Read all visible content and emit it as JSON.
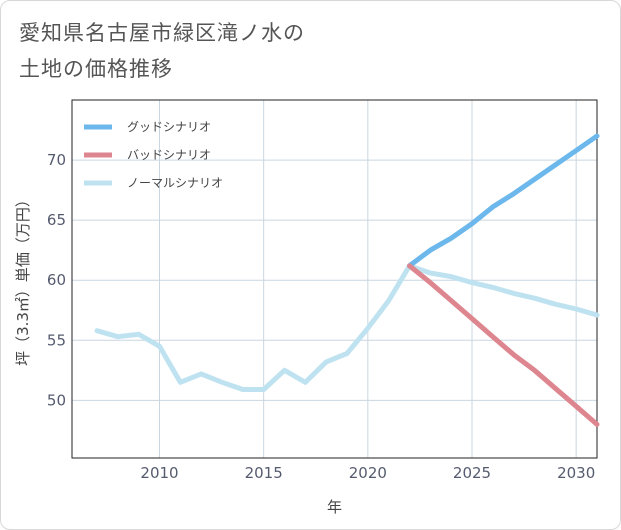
{
  "title_lines": [
    "愛知県名古屋市緑区滝ノ水の",
    "土地の価格推移"
  ],
  "chart_data": {
    "type": "line",
    "title": "愛知県名古屋市緑区滝ノ水の土地の価格推移",
    "xlabel": "年",
    "ylabel": "坪（3.3㎡）単価（万円）",
    "xlim": [
      2005.8,
      2031
    ],
    "ylim": [
      45.2,
      75
    ],
    "xticks": [
      2010,
      2015,
      2020,
      2025,
      2030
    ],
    "yticks": [
      50,
      55,
      60,
      65,
      70
    ],
    "grid": true,
    "legend_position": "top-left",
    "series": [
      {
        "name": "グッドシナリオ",
        "color": "#6cb8ec",
        "x": [
          2022,
          2023,
          2024,
          2025,
          2026,
          2027,
          2028,
          2029,
          2030,
          2031
        ],
        "values": [
          61.2,
          62.5,
          63.5,
          64.7,
          66.1,
          67.2,
          68.4,
          69.6,
          70.8,
          72.0
        ]
      },
      {
        "name": "バッドシナリオ",
        "color": "#dd868f",
        "x": [
          2022,
          2023,
          2024,
          2025,
          2026,
          2027,
          2028,
          2029,
          2030,
          2031
        ],
        "values": [
          61.2,
          59.8,
          58.3,
          56.8,
          55.3,
          53.8,
          52.5,
          51.0,
          49.5,
          48.0
        ]
      },
      {
        "name": "ノーマルシナリオ",
        "color": "#bfe2f1",
        "x": [
          2007,
          2008,
          2009,
          2010,
          2011,
          2012,
          2013,
          2014,
          2015,
          2016,
          2017,
          2018,
          2019,
          2020,
          2021,
          2022,
          2023,
          2024,
          2025,
          2026,
          2027,
          2028,
          2029,
          2030,
          2031
        ],
        "values": [
          55.8,
          55.3,
          55.5,
          54.5,
          51.5,
          52.2,
          51.5,
          50.9,
          50.9,
          52.5,
          51.5,
          53.2,
          53.9,
          56.0,
          58.3,
          61.2,
          60.6,
          60.3,
          59.8,
          59.4,
          58.9,
          58.5,
          58.0,
          57.6,
          57.1
        ]
      }
    ]
  }
}
